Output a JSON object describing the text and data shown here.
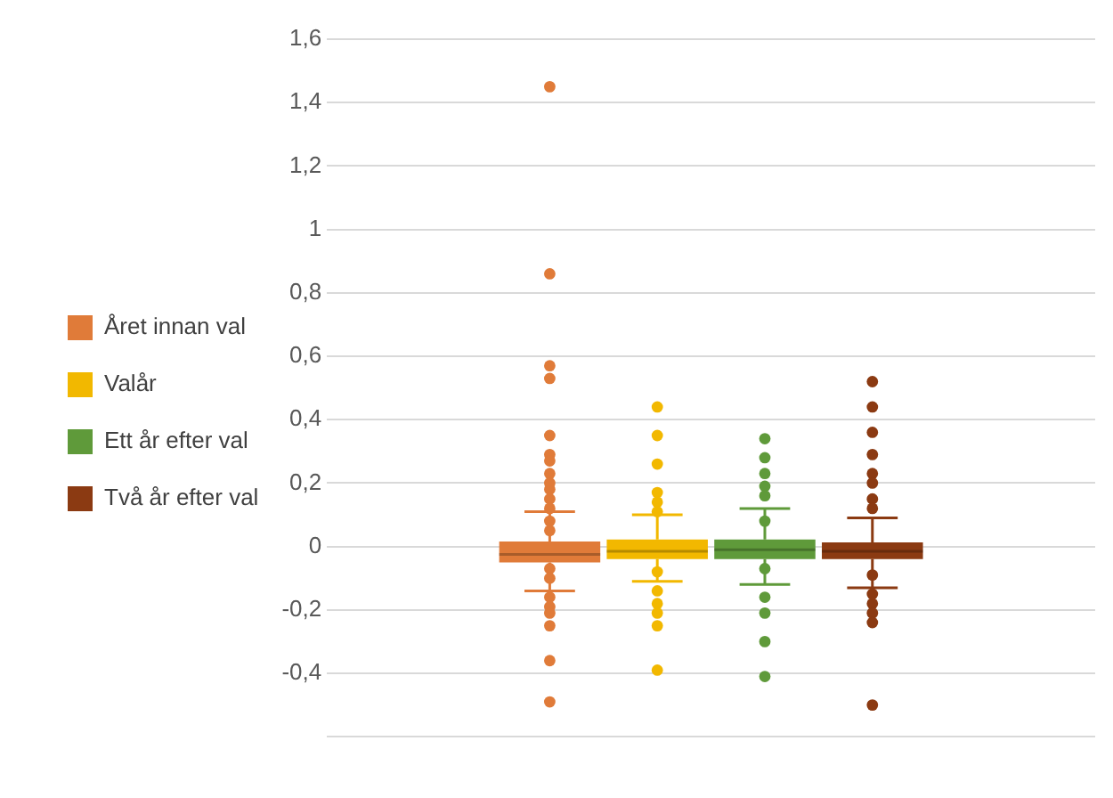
{
  "chart_data": {
    "type": "box",
    "categories": [
      null
    ],
    "series": [
      {
        "name": "Året innan val",
        "color": "#e07b39",
        "boxes": [
          {
            "low": -0.14,
            "q1": -0.05,
            "median": -0.025,
            "q3": 0.016,
            "high": 0.11,
            "outliers": [
              1.45,
              0.86,
              0.57,
              0.53,
              0.35,
              0.29,
              0.27,
              0.23,
              0.2,
              0.18,
              0.15,
              0.12,
              0.08,
              0.05,
              -0.07,
              -0.1,
              -0.16,
              -0.19,
              -0.21,
              -0.25,
              -0.36,
              -0.49
            ]
          }
        ]
      },
      {
        "name": "Valår",
        "color": "#f2b800",
        "boxes": [
          {
            "low": -0.11,
            "q1": -0.04,
            "median": -0.015,
            "q3": 0.022,
            "high": 0.1,
            "outliers": [
              0.44,
              0.35,
              0.26,
              0.17,
              0.14,
              0.11,
              -0.08,
              -0.14,
              -0.18,
              -0.21,
              -0.25,
              -0.39
            ]
          }
        ]
      },
      {
        "name": "Ett år efter val",
        "color": "#5f9a3a",
        "boxes": [
          {
            "low": -0.12,
            "q1": -0.04,
            "median": -0.01,
            "q3": 0.022,
            "high": 0.12,
            "outliers": [
              0.34,
              0.28,
              0.23,
              0.19,
              0.16,
              0.08,
              -0.07,
              -0.16,
              -0.21,
              -0.3,
              -0.41
            ]
          }
        ]
      },
      {
        "name": "Två år efter val",
        "color": "#8b3a12",
        "boxes": [
          {
            "low": -0.13,
            "q1": -0.04,
            "median": -0.015,
            "q3": 0.013,
            "high": 0.09,
            "outliers": [
              0.52,
              0.44,
              0.36,
              0.29,
              0.23,
              0.2,
              0.15,
              0.12,
              -0.09,
              -0.15,
              -0.18,
              -0.21,
              -0.24,
              -0.5
            ]
          }
        ]
      }
    ],
    "ylim": [
      -0.6,
      1.6
    ],
    "yticks": [
      {
        "value": -0.6,
        "label": null
      },
      {
        "value": -0.4,
        "label": "-0,4"
      },
      {
        "value": -0.2,
        "label": "-0,2"
      },
      0,
      {
        "value": 0.2,
        "label": "0,2"
      },
      {
        "value": 0.4,
        "label": "0,4"
      },
      {
        "value": 0.6,
        "label": "0,6"
      },
      {
        "value": 0.8,
        "label": "0,8"
      },
      1,
      {
        "value": 1.2,
        "label": "1,2"
      },
      {
        "value": 1.4,
        "label": "1,4"
      },
      {
        "value": 1.6,
        "label": "1,6"
      }
    ],
    "grid": "y",
    "legend": "left",
    "marker": "circle"
  }
}
